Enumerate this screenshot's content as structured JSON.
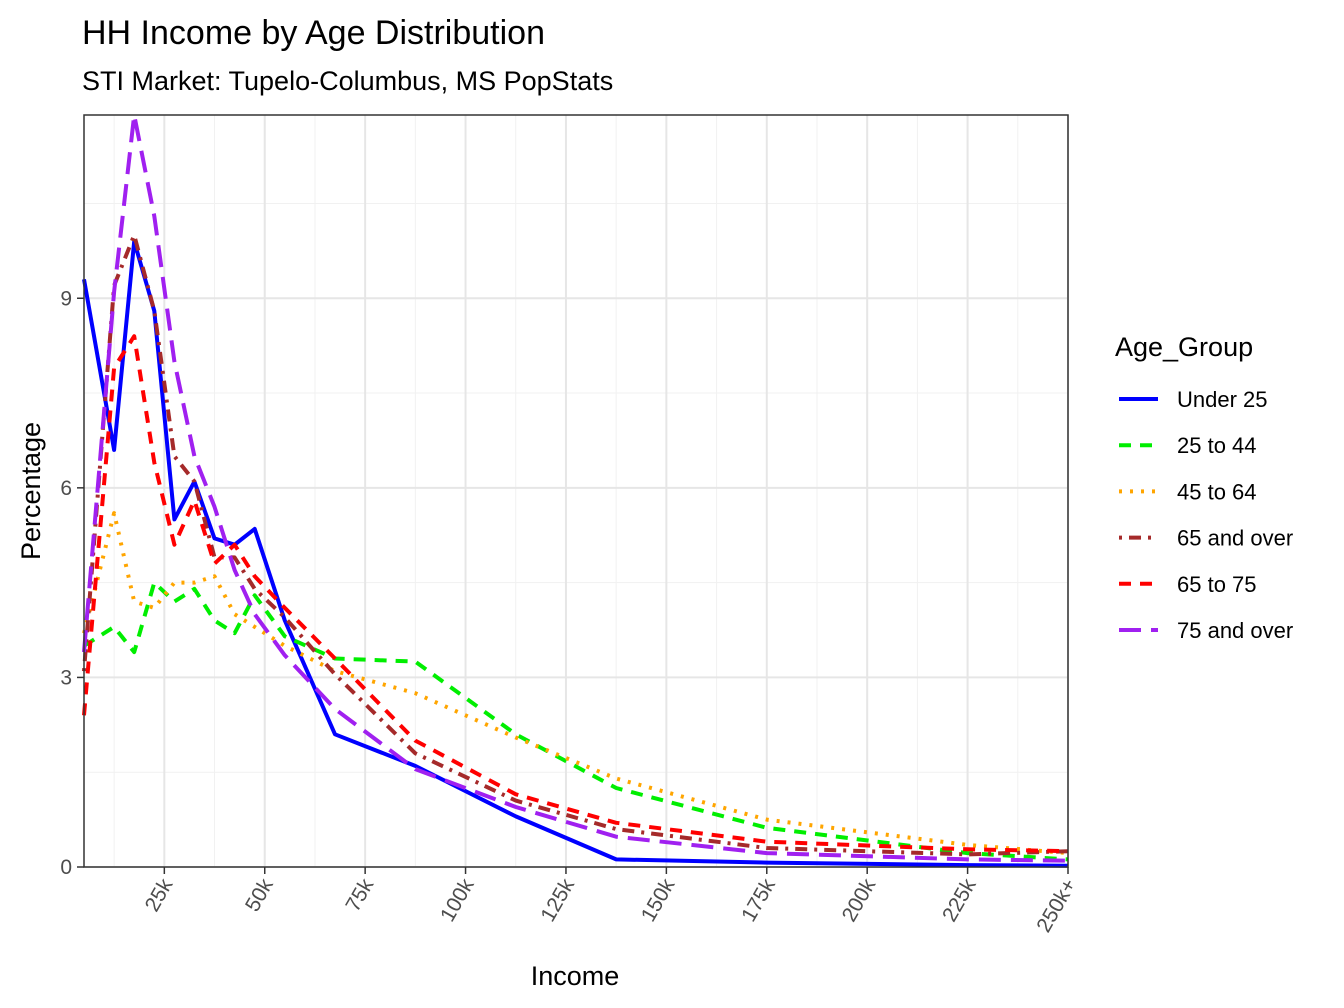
{
  "chart_data": {
    "type": "line",
    "title": "HH Income by Age Distribution",
    "subtitle": "STI Market: Tupelo-Columbus, MS PopStats",
    "xlabel": "Income",
    "ylabel": "Percentage",
    "xlim": [
      5,
      250
    ],
    "ylim": [
      0,
      11.9
    ],
    "x_ticks": [
      25,
      50,
      75,
      100,
      125,
      150,
      175,
      200,
      225,
      250
    ],
    "x_tick_labels": [
      "25k",
      "50k",
      "75k",
      "100k",
      "125k",
      "150k",
      "175k",
      "200k",
      "225k",
      "250k+"
    ],
    "y_ticks": [
      0,
      3,
      6,
      9
    ],
    "y_tick_labels": [
      "0",
      "3",
      "6",
      "9"
    ],
    "grid": true,
    "legend_title": "Age_Group",
    "legend_position": "right",
    "series": [
      {
        "name": "Under 25",
        "color": "#0000ff",
        "dash": "solid",
        "x": [
          5,
          12.5,
          17.5,
          22.5,
          27.5,
          32.5,
          37.5,
          42.5,
          47.5,
          55,
          67.5,
          87.5,
          112.5,
          137.5,
          175,
          225,
          250
        ],
        "y": [
          9.3,
          6.6,
          9.9,
          8.8,
          5.5,
          6.1,
          5.2,
          5.1,
          5.35,
          3.9,
          2.1,
          1.6,
          0.8,
          0.12,
          0.07,
          0.03,
          0.02
        ]
      },
      {
        "name": "25 to 44",
        "color": "#00ee00",
        "dash": "dashed",
        "x": [
          5,
          12.5,
          17.5,
          22.5,
          27.5,
          32.5,
          37.5,
          42.5,
          47.5,
          55,
          67.5,
          87.5,
          112.5,
          137.5,
          175,
          225,
          250
        ],
        "y": [
          3.5,
          3.8,
          3.4,
          4.5,
          4.2,
          4.4,
          3.9,
          3.7,
          4.3,
          3.65,
          3.3,
          3.25,
          2.1,
          1.25,
          0.62,
          0.22,
          0.12
        ]
      },
      {
        "name": "45 to 64",
        "color": "#ffa500",
        "dash": "dotted",
        "x": [
          5,
          12.5,
          17.5,
          22.5,
          27.5,
          32.5,
          37.5,
          42.5,
          47.5,
          55,
          67.5,
          87.5,
          112.5,
          137.5,
          175,
          225,
          250
        ],
        "y": [
          3.7,
          5.6,
          4.2,
          4.1,
          4.5,
          4.5,
          4.6,
          4.0,
          3.8,
          3.5,
          3.1,
          2.75,
          2.05,
          1.4,
          0.75,
          0.35,
          0.22
        ]
      },
      {
        "name": "65 and over",
        "color": "#a52a2a",
        "dash": "dotdash",
        "x": [
          5,
          12.5,
          17.5,
          22.5,
          27.5,
          32.5,
          37.5,
          42.5,
          47.5,
          55,
          67.5,
          87.5,
          112.5,
          137.5,
          175,
          225,
          250
        ],
        "y": [
          3.1,
          9.2,
          10.0,
          8.8,
          6.5,
          6.1,
          4.9,
          4.9,
          4.4,
          3.95,
          3.05,
          1.8,
          1.05,
          0.6,
          0.3,
          0.2,
          0.25
        ]
      },
      {
        "name": "65 to 75",
        "color": "#ff0000",
        "dash": "dashed",
        "x": [
          5,
          12.5,
          17.5,
          22.5,
          27.5,
          32.5,
          37.5,
          42.5,
          47.5,
          55,
          67.5,
          87.5,
          112.5,
          137.5,
          175,
          225,
          250
        ],
        "y": [
          2.4,
          7.9,
          8.4,
          6.4,
          5.1,
          5.8,
          4.8,
          5.1,
          4.6,
          4.1,
          3.3,
          2.0,
          1.15,
          0.7,
          0.4,
          0.28,
          0.25
        ]
      },
      {
        "name": "75 and over",
        "color": "#a020f0",
        "dash": "longdash",
        "x": [
          5,
          12.5,
          17.5,
          22.5,
          27.5,
          32.5,
          37.5,
          42.5,
          47.5,
          55,
          67.5,
          87.5,
          112.5,
          137.5,
          175,
          225,
          250
        ],
        "y": [
          3.4,
          9.1,
          11.9,
          10.3,
          8.0,
          6.5,
          5.7,
          4.7,
          4.0,
          3.35,
          2.5,
          1.55,
          0.95,
          0.48,
          0.22,
          0.12,
          0.1
        ]
      }
    ]
  }
}
